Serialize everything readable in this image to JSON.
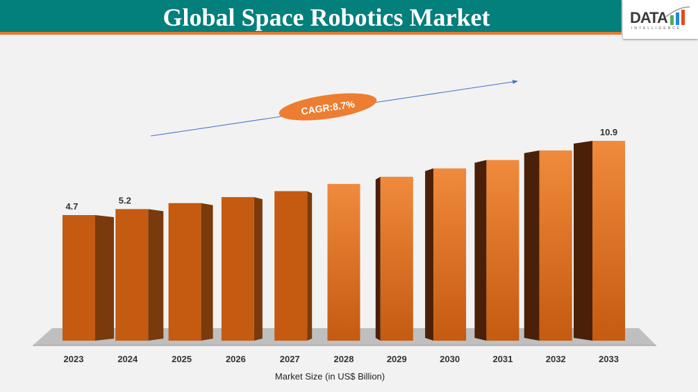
{
  "title": "Global Space Robotics Market",
  "logo": {
    "text": "DATA",
    "subtext": "INTELLIGENCE"
  },
  "chart_data": {
    "type": "bar",
    "title": "Global Space Robotics Market",
    "xlabel": "Market Size (in US$ Billion)",
    "ylabel": "",
    "categories": [
      "2023",
      "2024",
      "2025",
      "2026",
      "2027",
      "2028",
      "2029",
      "2030",
      "2031",
      "2032",
      "2033"
    ],
    "values": [
      4.7,
      5.2,
      5.7,
      6.2,
      6.7,
      7.3,
      7.9,
      8.6,
      9.3,
      10.1,
      10.9
    ],
    "data_labels": {
      "0": "4.7",
      "1": "5.2",
      "10": "10.9"
    },
    "annotation": "CAGR:8.7%",
    "grid": false,
    "colors": {
      "bar_front": "#c55a11",
      "bar_side": "#7a3a0c",
      "bar_side_dark": "#4a2108",
      "cagr": "#ed7d31",
      "arrow": "#4472c4"
    }
  }
}
